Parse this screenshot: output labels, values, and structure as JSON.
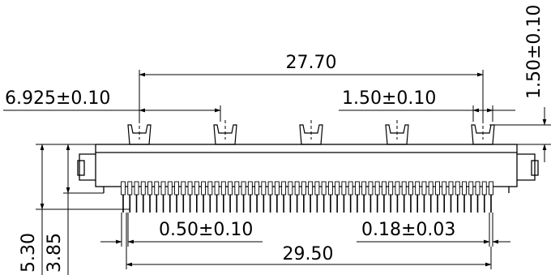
{
  "dimensions": {
    "top_span": "27.70",
    "left_offset": "6.925±0.10",
    "pin_pitch": "1.50±0.10",
    "post_height": "1.50±0.10",
    "lead_pitch": "0.50±0.10",
    "lead_thickness": "0.18±0.03",
    "overall_length": "29.50",
    "total_height": "5.30",
    "body_height": "3.85"
  },
  "diagram": {
    "pins_count": 56,
    "posts_count": 5
  }
}
